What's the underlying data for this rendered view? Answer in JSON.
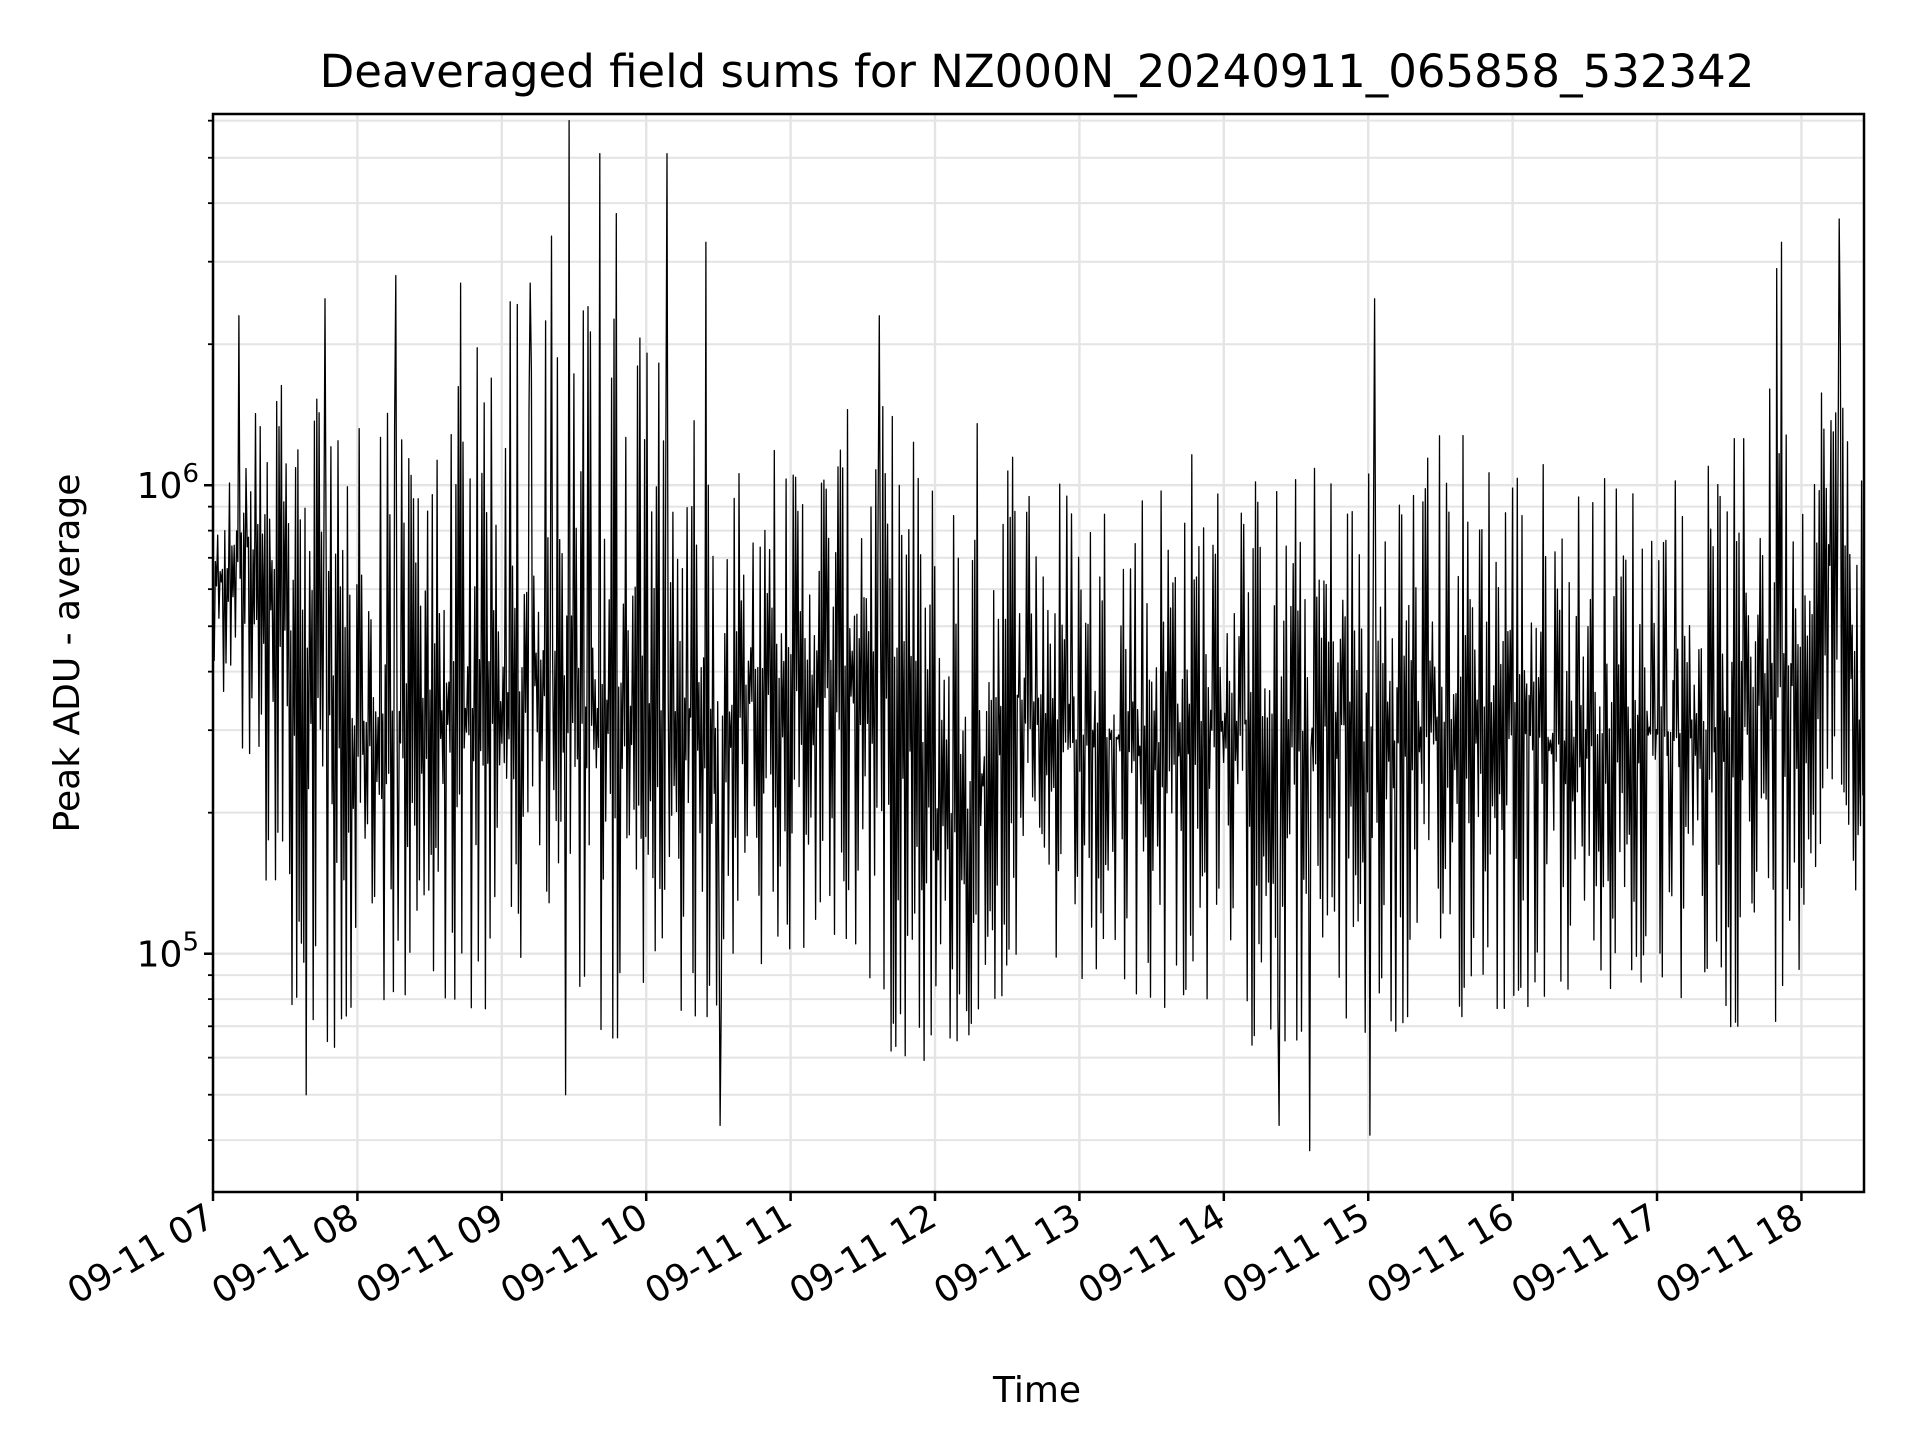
{
  "chart_data": {
    "type": "line",
    "title": "Deaveraged field sums for NZ000N_20240911_065858_532342",
    "xlabel": "Time",
    "ylabel": "Peak ADU - average",
    "xscale": "time",
    "yscale": "log",
    "xlim": [
      "2024-09-11 07:00",
      "2024-09-11 18:26"
    ],
    "ylim": [
      31000,
      6200000
    ],
    "x_ticks": [
      "09-11 07",
      "09-11 08",
      "09-11 09",
      "09-11 10",
      "09-11 11",
      "09-11 12",
      "09-11 13",
      "09-11 14",
      "09-11 15",
      "09-11 16",
      "09-11 17",
      "09-11 18"
    ],
    "y_ticks": [
      {
        "value": 100000,
        "base": "10",
        "exp": "5"
      },
      {
        "value": 1000000,
        "base": "10",
        "exp": "6"
      }
    ],
    "grid": true,
    "legend": "none",
    "line_color": "#000000",
    "series": [
      {
        "x": [
          "07:00",
          "07:15",
          "07:30",
          "07:45",
          "08:00",
          "08:15",
          "08:30",
          "08:45",
          "09:00",
          "09:15",
          "09:30",
          "09:45",
          "10:00",
          "10:15",
          "10:30",
          "10:45",
          "11:00",
          "11:15",
          "11:30",
          "11:45",
          "12:00",
          "12:15",
          "12:30",
          "12:45",
          "13:00",
          "13:15",
          "13:30",
          "13:45",
          "14:00",
          "14:15",
          "14:30",
          "14:45",
          "15:00",
          "15:15",
          "15:30",
          "15:45",
          "16:00",
          "16:15",
          "16:30",
          "16:45",
          "17:00",
          "17:15",
          "17:30",
          "17:45",
          "18:00",
          "18:15",
          "18:26"
        ],
        "values": [
          600000,
          750000,
          500000,
          380000,
          300000,
          330000,
          320000,
          300000,
          320000,
          380000,
          310000,
          320000,
          300000,
          330000,
          300000,
          400000,
          380000,
          400000,
          420000,
          430000,
          200000,
          190000,
          380000,
          300000,
          280000,
          290000,
          270000,
          320000,
          300000,
          320000,
          280000,
          330000,
          270000,
          290000,
          300000,
          330000,
          340000,
          280000,
          290000,
          300000,
          300000,
          290000,
          310000,
          380000,
          420000,
          900000,
          250000
        ],
        "low": [
          420000,
          230000,
          70000,
          62000,
          58000,
          62000,
          62000,
          62000,
          80000,
          72000,
          65000,
          62000,
          68000,
          70000,
          75000,
          88000,
          85000,
          90000,
          84000,
          55000,
          58000,
          60000,
          80000,
          85000,
          75000,
          65000,
          75000,
          72000,
          68000,
          62000,
          60000,
          63000,
          58000,
          60000,
          65000,
          72000,
          70000,
          75000,
          78000,
          72000,
          75000,
          70000,
          68000,
          62000,
          95000,
          150000,
          130000
        ],
        "high": [
          900000,
          1400000,
          1700000,
          1600000,
          1500000,
          1700000,
          1600000,
          1900000,
          2500000,
          3300000,
          3000000,
          2800000,
          2500000,
          1500000,
          1400000,
          1300000,
          1300000,
          1400000,
          1500000,
          1500000,
          1200000,
          1500000,
          1500000,
          1200000,
          1100000,
          1100000,
          1200000,
          1300000,
          1100000,
          1100000,
          1100000,
          1200000,
          1200000,
          1300000,
          1400000,
          1500000,
          1300000,
          1200000,
          1100000,
          1100000,
          1200000,
          1100000,
          1200000,
          1800000,
          1500000,
          2300000,
          1600000
        ]
      }
    ],
    "spikes": [
      {
        "x": "07:11",
        "y": 2300000
      },
      {
        "x": "07:47",
        "y": 2500000
      },
      {
        "x": "08:16",
        "y": 2800000
      },
      {
        "x": "08:43",
        "y": 2700000
      },
      {
        "x": "09:12",
        "y": 2700000
      },
      {
        "x": "09:21",
        "y": 3400000
      },
      {
        "x": "09:28",
        "y": 6000000
      },
      {
        "x": "09:41",
        "y": 5100000
      },
      {
        "x": "09:48",
        "y": 3800000
      },
      {
        "x": "10:09",
        "y": 5100000
      },
      {
        "x": "10:25",
        "y": 3300000
      },
      {
        "x": "11:37",
        "y": 2300000
      },
      {
        "x": "15:03",
        "y": 2500000
      },
      {
        "x": "17:50",
        "y": 2900000
      },
      {
        "x": "17:52",
        "y": 3300000
      },
      {
        "x": "18:16",
        "y": 3700000
      },
      {
        "x": "07:39",
        "y": 50000
      },
      {
        "x": "09:27",
        "y": 50000
      },
      {
        "x": "10:31",
        "y": 43000
      },
      {
        "x": "14:36",
        "y": 38000
      },
      {
        "x": "15:01",
        "y": 41000
      },
      {
        "x": "14:23",
        "y": 43000
      }
    ]
  }
}
